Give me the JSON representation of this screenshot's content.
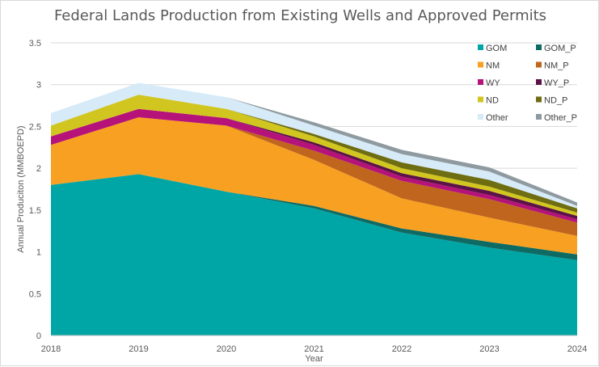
{
  "chart_data": {
    "type": "area",
    "stacked": true,
    "title": "Federal Lands Production from Existing Wells and Approved Permits",
    "xlabel": "Year",
    "ylabel": "Annual Produciton (MMBOEPD)",
    "x": [
      "2018",
      "2019",
      "2020",
      "2021",
      "2022",
      "2023",
      "2024"
    ],
    "ylim": [
      0,
      3.5
    ],
    "yticks": [
      "0",
      "0.5",
      "1",
      "1.5",
      "2",
      "2.5",
      "3",
      "3.5"
    ],
    "grid": true,
    "legend_position": "right",
    "series": [
      {
        "name": "GOM",
        "color": "#00A6A6",
        "values": [
          1.8,
          1.93,
          1.72,
          1.52,
          1.23,
          1.05,
          0.9
        ]
      },
      {
        "name": "GOM_P",
        "color": "#0E6B63",
        "values": [
          0.0,
          0.0,
          0.0,
          0.03,
          0.05,
          0.07,
          0.07
        ]
      },
      {
        "name": "NM",
        "color": "#F7A021",
        "values": [
          0.48,
          0.68,
          0.79,
          0.55,
          0.36,
          0.29,
          0.22
        ]
      },
      {
        "name": "NM_P",
        "color": "#C0651D",
        "values": [
          0.0,
          0.0,
          0.0,
          0.11,
          0.21,
          0.22,
          0.16
        ]
      },
      {
        "name": "WY",
        "color": "#B5127A",
        "values": [
          0.1,
          0.1,
          0.09,
          0.07,
          0.05,
          0.05,
          0.04
        ]
      },
      {
        "name": "WY_P",
        "color": "#5C1148",
        "values": [
          0.0,
          0.0,
          0.0,
          0.03,
          0.04,
          0.05,
          0.04
        ]
      },
      {
        "name": "ND",
        "color": "#D1C61F",
        "values": [
          0.13,
          0.17,
          0.11,
          0.07,
          0.06,
          0.05,
          0.04
        ]
      },
      {
        "name": "ND_P",
        "color": "#6E6D12",
        "values": [
          0.0,
          0.0,
          0.0,
          0.03,
          0.07,
          0.08,
          0.05
        ]
      },
      {
        "name": "Other",
        "color": "#D6EAF7",
        "values": [
          0.15,
          0.14,
          0.14,
          0.1,
          0.1,
          0.1,
          0.03
        ]
      },
      {
        "name": "Other_P",
        "color": "#8E9AA0",
        "values": [
          0.0,
          0.0,
          0.0,
          0.04,
          0.05,
          0.05,
          0.04
        ]
      }
    ]
  }
}
